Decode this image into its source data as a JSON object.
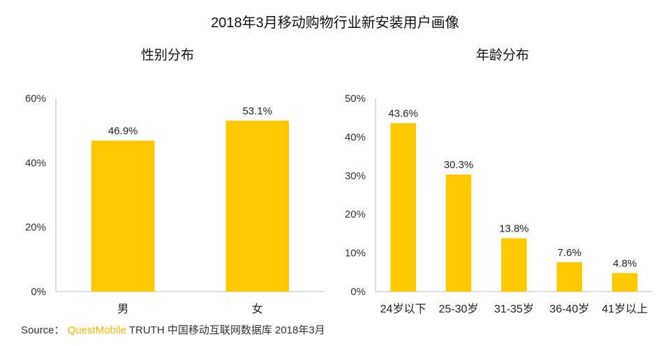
{
  "title": "2018年3月移动购物行业新安装用户画像",
  "colors": {
    "bar": "#FFC800",
    "axis": "#bfbfbf",
    "text": "#222222",
    "brand": "#F2B705"
  },
  "chart_data": [
    {
      "type": "bar",
      "title": "性别分布",
      "categories": [
        "男",
        "女"
      ],
      "values": [
        46.9,
        53.1
      ],
      "value_labels": [
        "46.9%",
        "53.1%"
      ],
      "ylim": [
        0,
        60
      ],
      "yticks": [
        0,
        20,
        40,
        60
      ],
      "ytick_labels": [
        "0%",
        "20%",
        "40%",
        "60%"
      ],
      "xlabel": "",
      "ylabel": ""
    },
    {
      "type": "bar",
      "title": "年龄分布",
      "categories": [
        "24岁以下",
        "25-30岁",
        "31-35岁",
        "36-40岁",
        "41岁以上"
      ],
      "values": [
        43.6,
        30.3,
        13.8,
        7.6,
        4.8
      ],
      "value_labels": [
        "43.6%",
        "30.3%",
        "13.8%",
        "7.6%",
        "4.8%"
      ],
      "ylim": [
        0,
        50
      ],
      "yticks": [
        0,
        10,
        20,
        30,
        40,
        50
      ],
      "ytick_labels": [
        "0%",
        "10%",
        "20%",
        "30%",
        "40%",
        "50%"
      ],
      "xlabel": "",
      "ylabel": ""
    }
  ],
  "source": {
    "prefix": "Source：",
    "brand": "QuestMobile",
    "rest": "TRUTH 中国移动互联网数据库 2018年3月"
  }
}
